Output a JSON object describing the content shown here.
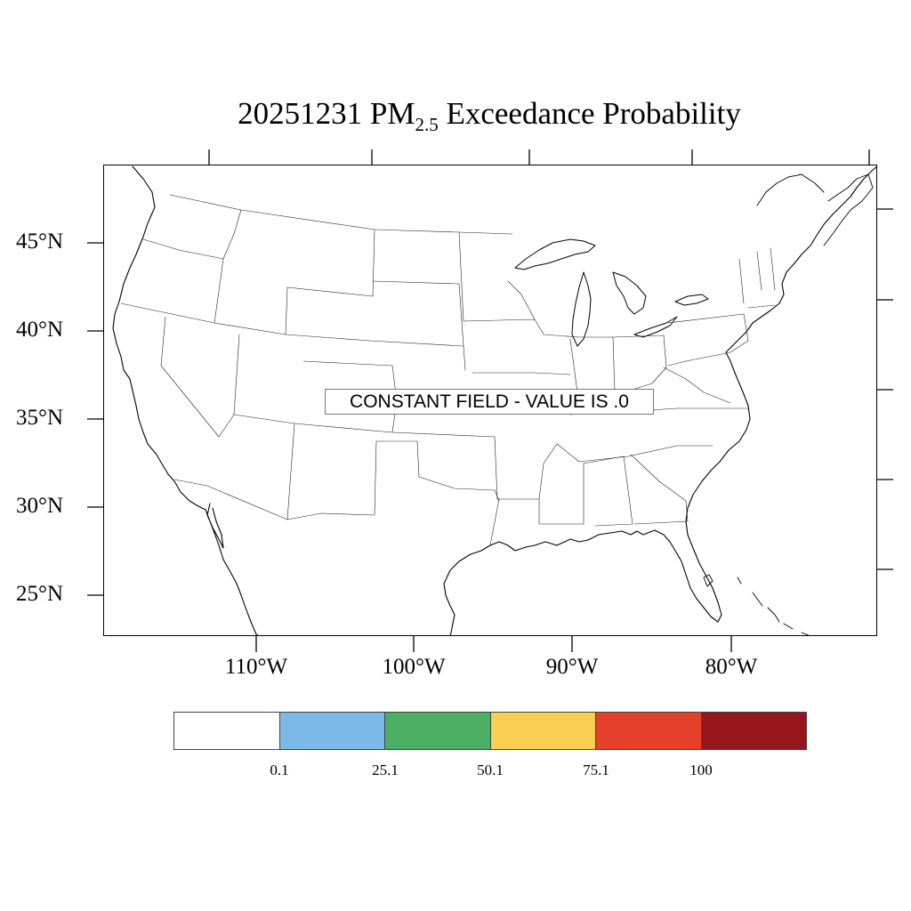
{
  "title": {
    "date": "20251231",
    "species": "PM",
    "subscript": "2.5",
    "suffix": "Exceedance Probability"
  },
  "map": {
    "projection": "Lambert conformal",
    "region": "Contiguous United States",
    "latitude_labels": [
      "45°N",
      "40°N",
      "35°N",
      "30°N",
      "25°N"
    ],
    "longitude_labels": [
      "110°W",
      "100°W",
      "90°W",
      "80°W"
    ],
    "line_color": "#000000",
    "fill_color": "#ffffff"
  },
  "notice": "CONSTANT FIELD - VALUE IS .0",
  "legend": {
    "colors": [
      "#ffffff",
      "#7db9e6",
      "#4aaf63",
      "#f8cf53",
      "#e5402a",
      "#96161c"
    ],
    "labels": [
      "0.1",
      "25.1",
      "50.1",
      "75.1",
      "100"
    ]
  }
}
